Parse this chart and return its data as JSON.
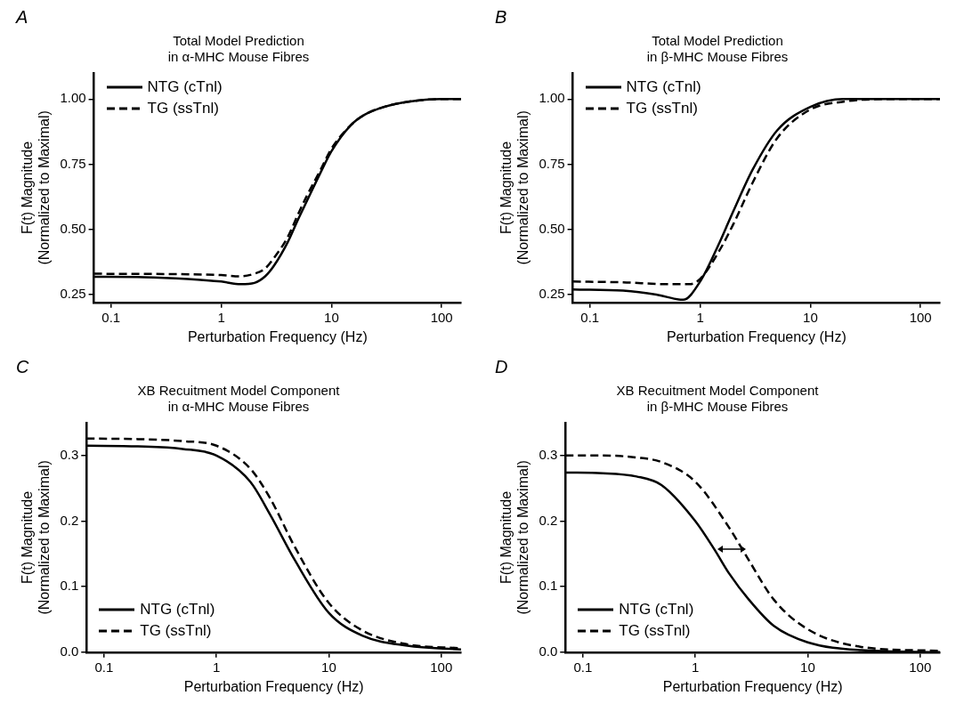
{
  "chart_data": [
    {
      "type": "line",
      "annotations": [
        "A"
      ],
      "title": "Total Model Prediction\nin α-MHC Mouse Fibres",
      "xlabel": "Perturbation Frequency (Hz)",
      "ylabel": "F(t) Magnitude\n(Normalized to Maximal)",
      "log": "x",
      "xlim": [
        0.07,
        150
      ],
      "xticks": [
        0.1,
        1,
        10,
        100
      ],
      "ylim": [
        0.22,
        1.1
      ],
      "yticks": [
        {
          "value": 0.25,
          "label": "0.25"
        },
        {
          "value": 0.5,
          "label": "0.50"
        },
        {
          "value": 0.75,
          "label": "0.75"
        },
        {
          "value": 1,
          "label": "1.00"
        }
      ],
      "grid": false,
      "legend": "top left",
      "series": [
        {
          "name": "NTG (cTnl)",
          "color": "#000000",
          "line_style": "solid",
          "x": [
            0.07,
            0.2,
            0.5,
            1,
            1.5,
            2,
            2.5,
            3,
            4,
            5,
            6,
            8,
            10,
            15,
            20,
            30,
            50,
            100,
            150
          ],
          "values": [
            0.318,
            0.317,
            0.31,
            0.3,
            0.29,
            0.295,
            0.32,
            0.36,
            0.45,
            0.54,
            0.61,
            0.72,
            0.8,
            0.9,
            0.94,
            0.97,
            0.99,
            1.0,
            1.0
          ]
        },
        {
          "name": "TG (ssTnl)",
          "color": "#000000",
          "line_style": "dashed",
          "x": [
            0.07,
            0.5,
            1,
            1.5,
            2,
            2.5,
            3,
            4,
            5,
            6,
            8,
            10,
            15,
            20,
            30,
            50,
            100,
            150
          ],
          "values": [
            0.33,
            0.328,
            0.325,
            0.32,
            0.33,
            0.35,
            0.39,
            0.47,
            0.56,
            0.63,
            0.73,
            0.81,
            0.9,
            0.94,
            0.97,
            0.99,
            1.0,
            1.0
          ]
        }
      ]
    },
    {
      "type": "line",
      "annotations": [
        "B"
      ],
      "title": "Total Model Prediction\nin β-MHC Mouse Fibres",
      "xlabel": "Perturbation Frequency (Hz)",
      "ylabel": "F(t) Magnitude\n(Normalized to Maximal)",
      "log": "x",
      "xlim": [
        0.07,
        150
      ],
      "xticks": [
        0.1,
        1,
        10,
        100
      ],
      "ylim": [
        0.22,
        1.1
      ],
      "yticks": [
        {
          "value": 0.25,
          "label": "0.25"
        },
        {
          "value": 0.5,
          "label": "0.50"
        },
        {
          "value": 0.75,
          "label": "0.75"
        },
        {
          "value": 1,
          "label": "1.00"
        }
      ],
      "grid": false,
      "legend": "top left",
      "series": [
        {
          "name": "NTG (cTnl)",
          "color": "#000000",
          "line_style": "solid",
          "x": [
            0.07,
            0.2,
            0.4,
            0.7,
            1,
            1.5,
            2,
            3,
            5,
            10,
            20,
            50,
            150
          ],
          "values": [
            0.27,
            0.265,
            0.25,
            0.23,
            0.3,
            0.45,
            0.57,
            0.73,
            0.88,
            0.97,
            1.0,
            1.0,
            1.0
          ]
        },
        {
          "name": "TG (ssTnl)",
          "color": "#000000",
          "line_style": "dashed",
          "x": [
            0.07,
            0.2,
            0.5,
            0.8,
            1,
            1.5,
            2,
            3,
            5,
            10,
            20,
            50,
            150
          ],
          "values": [
            0.3,
            0.297,
            0.29,
            0.29,
            0.31,
            0.42,
            0.52,
            0.68,
            0.85,
            0.96,
            0.99,
            1.0,
            1.0
          ]
        }
      ]
    },
    {
      "type": "line",
      "annotations": [
        "C"
      ],
      "title": "XB Recuitment Model Component\nin α-MHC Mouse Fibres",
      "xlabel": "Perturbation Frequency (Hz)",
      "ylabel": "F(t) Magnitude\n(Normalized to Maximal)",
      "log": "x",
      "xlim": [
        0.07,
        150
      ],
      "xticks": [
        0.1,
        1,
        10,
        100
      ],
      "ylim": [
        0,
        0.35
      ],
      "yticks": [
        {
          "value": 0,
          "label": "0.0"
        },
        0.1,
        0.2,
        0.3
      ],
      "grid": false,
      "legend": "bottom left",
      "series": [
        {
          "name": "NTG (cTnl)",
          "color": "#000000",
          "line_style": "solid",
          "x": [
            0.07,
            0.2,
            0.5,
            1,
            2,
            3,
            5,
            10,
            20,
            50,
            150
          ],
          "values": [
            0.315,
            0.314,
            0.31,
            0.3,
            0.26,
            0.21,
            0.14,
            0.06,
            0.025,
            0.01,
            0.004
          ]
        },
        {
          "name": "TG (ssTnl)",
          "color": "#000000",
          "line_style": "dashed",
          "x": [
            0.07,
            0.2,
            0.5,
            1,
            2,
            3,
            5,
            10,
            20,
            50,
            150
          ],
          "values": [
            0.326,
            0.325,
            0.322,
            0.315,
            0.28,
            0.235,
            0.16,
            0.075,
            0.033,
            0.012,
            0.006
          ]
        }
      ]
    },
    {
      "type": "line",
      "annotations": [
        "D"
      ],
      "title": "XB Recuitment Model Component\nin β-MHC Mouse Fibres",
      "xlabel": "Perturbation Frequency (Hz)",
      "ylabel": "F(t) Magnitude\n(Normalized to Maximal)",
      "log": "x",
      "xlim": [
        0.07,
        150
      ],
      "xticks": [
        0.1,
        1,
        10,
        100
      ],
      "ylim": [
        0,
        0.35
      ],
      "yticks": [
        {
          "value": 0,
          "label": "0.0"
        },
        0.1,
        0.2,
        0.3
      ],
      "grid": false,
      "legend": "bottom left",
      "series": [
        {
          "name": "NTG (cTnl)",
          "color": "#000000",
          "line_style": "solid",
          "x": [
            0.07,
            0.15,
            0.3,
            0.5,
            1,
            1.5,
            2,
            3,
            5,
            10,
            30,
            150
          ],
          "values": [
            0.274,
            0.273,
            0.268,
            0.255,
            0.2,
            0.155,
            0.12,
            0.08,
            0.04,
            0.015,
            0.003,
            0.0
          ]
        },
        {
          "name": "TG (ssTnl)",
          "color": "#000000",
          "line_style": "dashed",
          "x": [
            0.07,
            0.15,
            0.3,
            0.5,
            1,
            2,
            3,
            5,
            10,
            30,
            150
          ],
          "values": [
            0.3,
            0.3,
            0.297,
            0.29,
            0.26,
            0.19,
            0.14,
            0.08,
            0.035,
            0.008,
            0.002
          ]
        }
      ]
    }
  ]
}
